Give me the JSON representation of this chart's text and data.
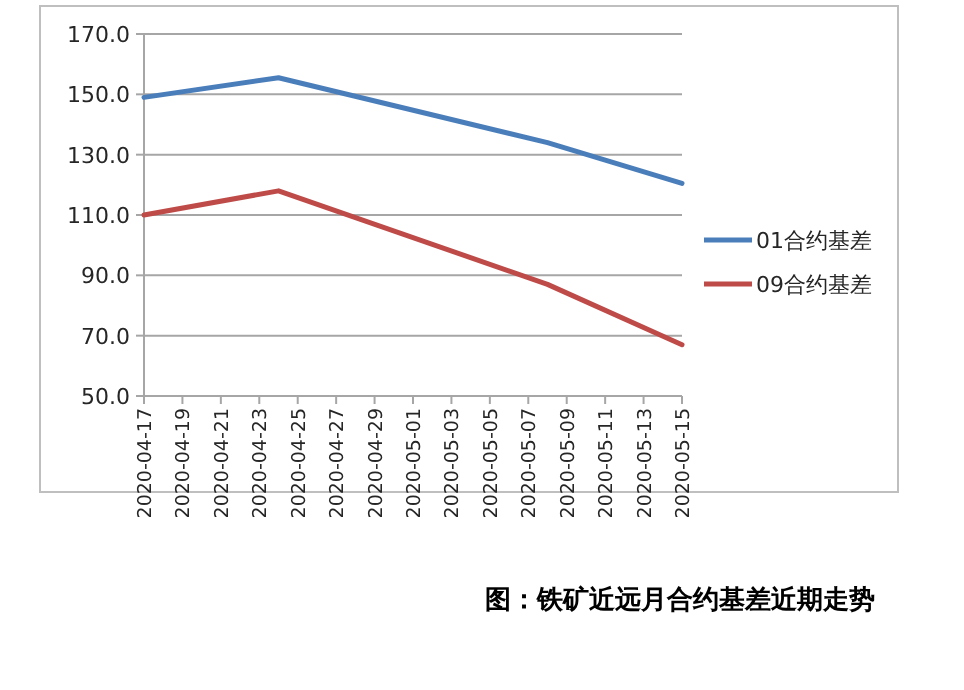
{
  "chart_data": {
    "type": "line",
    "title": "图：铁矿近远月合约基差近期走势",
    "x": [
      "2020-04-17",
      "2020-04-24",
      "2020-05-08",
      "2020-05-15"
    ],
    "series": [
      {
        "name": "01合约基差",
        "color": "#4a7ebb",
        "values": [
          149,
          155.5,
          134,
          120.5
        ]
      },
      {
        "name": "09合约基差",
        "color": "#be4b48",
        "values": [
          110,
          118,
          87,
          67
        ]
      }
    ],
    "xlim": [
      "2020-04-17",
      "2020-05-15"
    ],
    "xticks": [
      "2020-04-17",
      "2020-04-19",
      "2020-04-21",
      "2020-04-23",
      "2020-04-25",
      "2020-04-27",
      "2020-04-29",
      "2020-05-01",
      "2020-05-03",
      "2020-05-05",
      "2020-05-07",
      "2020-05-09",
      "2020-05-11",
      "2020-05-13",
      "2020-05-15"
    ],
    "ylim": [
      50,
      170
    ],
    "yticks": [
      {
        "value": 50,
        "label": "50.0"
      },
      {
        "value": 70,
        "label": "70.0"
      },
      {
        "value": 90,
        "label": "90.0"
      },
      {
        "value": 110,
        "label": "110.0"
      },
      {
        "value": 130,
        "label": "130.0"
      },
      {
        "value": 150,
        "label": "150.0"
      },
      {
        "value": 170,
        "label": "170.0"
      }
    ],
    "grid": "y",
    "legend": "right",
    "marker": "none",
    "line_style": "solid"
  }
}
